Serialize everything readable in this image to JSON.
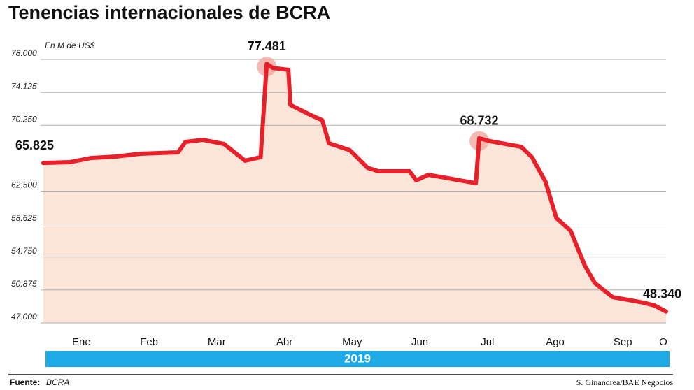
{
  "chart_data": {
    "type": "line",
    "title": "Tenencias internacionales de BCRA",
    "subtitle": "En M de US$",
    "categories": [
      "Ene",
      "Feb",
      "Mar",
      "Abr",
      "May",
      "Jun",
      "Jul",
      "Ago",
      "Sep",
      "O"
    ],
    "year": "2019",
    "source_label": "Fuente:",
    "source": "BCRA",
    "credit": "S. Ginandrea/BAE Negocios",
    "color": "#e8202a",
    "area_color": "#fbe4d8",
    "band_color": "#1eaae7",
    "xlim": [
      0,
      9.2
    ],
    "ylim": [
      47000,
      78000
    ],
    "yticks": [
      {
        "value": 47000,
        "label": "47.000"
      },
      {
        "value": 50875,
        "label": "50.875"
      },
      {
        "value": 54750,
        "label": "54.750"
      },
      {
        "value": 58625,
        "label": "58.625"
      },
      {
        "value": 62500,
        "label": "62.500"
      },
      {
        "value": 70250,
        "label": "70.250"
      },
      {
        "value": 74125,
        "label": "74.125"
      },
      {
        "value": 78000,
        "label": "78.000"
      }
    ],
    "grid": true,
    "x": [
      0,
      0.39,
      0.7,
      1.07,
      1.43,
      1.99,
      2.1,
      2.36,
      2.67,
      2.98,
      3.21,
      3.3,
      3.39,
      3.62,
      3.65,
      3.96,
      4.12,
      4.22,
      4.53,
      4.79,
      4.95,
      5.41,
      5.51,
      5.69,
      5.98,
      6.39,
      6.44,
      6.6,
      7.06,
      7.22,
      7.42,
      7.58,
      7.79,
      8.0,
      8.15,
      8.41,
      8.87,
      9.03,
      9.2
    ],
    "values": [
      65825,
      65910,
      66400,
      66570,
      66900,
      67060,
      68300,
      68540,
      68050,
      66080,
      66490,
      77481,
      77000,
      76770,
      72650,
      71420,
      70850,
      68130,
      67310,
      65250,
      64840,
      64840,
      63780,
      64430,
      64020,
      63440,
      68732,
      68380,
      67720,
      66490,
      63610,
      59330,
      57850,
      53740,
      51680,
      50040,
      49380,
      49050,
      48340
    ],
    "value_labels": [
      "65.825",
      null,
      null,
      null,
      null,
      null,
      null,
      null,
      null,
      null,
      null,
      "77.481",
      null,
      null,
      null,
      null,
      null,
      null,
      null,
      null,
      null,
      null,
      null,
      null,
      null,
      null,
      "68.732",
      null,
      null,
      null,
      null,
      null,
      null,
      null,
      null,
      null,
      null,
      null,
      "48.340"
    ]
  }
}
